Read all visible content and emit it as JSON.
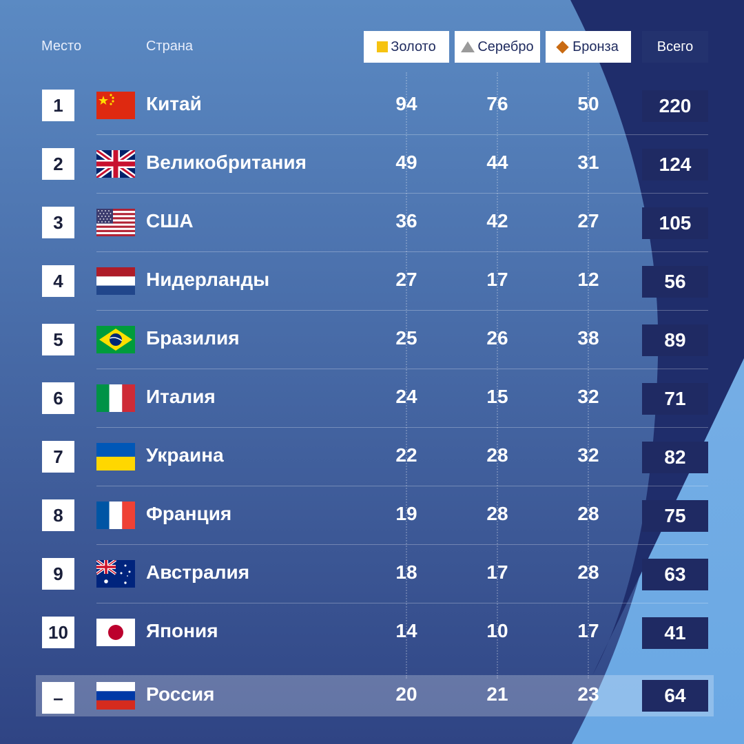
{
  "header": {
    "place_label": "Место",
    "country_label": "Страна",
    "gold_label": "Золото",
    "silver_label": "Серебро",
    "bronze_label": "Бронза",
    "total_label": "Всего"
  },
  "colors": {
    "gold": "#f6c311",
    "silver": "#9a9a9a",
    "bronze": "#c96a12",
    "total_box": "#1f2a63",
    "corner_navy": "#1f2d6b"
  },
  "rows": [
    {
      "rank": "1",
      "flag": "china-flag-icon",
      "country": "Китай",
      "gold": "94",
      "silver": "76",
      "bronze": "50",
      "total": "220"
    },
    {
      "rank": "2",
      "flag": "uk-flag-icon",
      "country": "Великобритания",
      "gold": "49",
      "silver": "44",
      "bronze": "31",
      "total": "124"
    },
    {
      "rank": "3",
      "flag": "usa-flag-icon",
      "country": "США",
      "gold": "36",
      "silver": "42",
      "bronze": "27",
      "total": "105"
    },
    {
      "rank": "4",
      "flag": "netherlands-flag-icon",
      "country": "Нидерланды",
      "gold": "27",
      "silver": "17",
      "bronze": "12",
      "total": "56"
    },
    {
      "rank": "5",
      "flag": "brazil-flag-icon",
      "country": "Бразилия",
      "gold": "25",
      "silver": "26",
      "bronze": "38",
      "total": "89"
    },
    {
      "rank": "6",
      "flag": "italy-flag-icon",
      "country": "Италия",
      "gold": "24",
      "silver": "15",
      "bronze": "32",
      "total": "71"
    },
    {
      "rank": "7",
      "flag": "ukraine-flag-icon",
      "country": "Украина",
      "gold": "22",
      "silver": "28",
      "bronze": "32",
      "total": "82"
    },
    {
      "rank": "8",
      "flag": "france-flag-icon",
      "country": "Франция",
      "gold": "19",
      "silver": "28",
      "bronze": "28",
      "total": "75"
    },
    {
      "rank": "9",
      "flag": "australia-flag-icon",
      "country": "Австралия",
      "gold": "18",
      "silver": "17",
      "bronze": "28",
      "total": "63"
    },
    {
      "rank": "10",
      "flag": "japan-flag-icon",
      "country": "Япония",
      "gold": "14",
      "silver": "10",
      "bronze": "17",
      "total": "41"
    }
  ],
  "footer": {
    "rank": "–",
    "flag": "russia-flag-icon",
    "country": "Россия",
    "gold": "20",
    "silver": "21",
    "bronze": "23",
    "total": "64"
  }
}
